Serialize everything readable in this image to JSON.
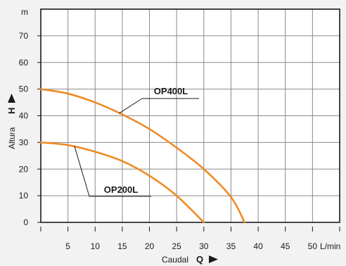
{
  "chart_data": {
    "type": "line",
    "xlabel": "Caudal",
    "xlabel_symbol": "Q",
    "ylabel": "Altura",
    "ylabel_symbol": "H",
    "x_unit": "L/min",
    "y_unit": "m",
    "xlim": [
      0,
      55
    ],
    "ylim": [
      0,
      80
    ],
    "x_ticks": [
      5,
      10,
      15,
      20,
      25,
      30,
      35,
      40,
      45,
      50
    ],
    "y_ticks": [
      0,
      10,
      20,
      30,
      40,
      50,
      60,
      70
    ],
    "grid": true,
    "series_color": "#f08a24",
    "series": [
      {
        "name": "OP400L",
        "x": [
          0,
          5,
          10,
          15,
          20,
          25,
          30,
          35,
          37.5
        ],
        "y": [
          50,
          48.3,
          45,
          40.5,
          35,
          28,
          20,
          9.5,
          0
        ]
      },
      {
        "name": "OP200L",
        "x": [
          0,
          5,
          10,
          15,
          20,
          25,
          30
        ],
        "y": [
          30,
          29,
          26.5,
          23,
          17.5,
          10,
          0
        ]
      }
    ]
  }
}
